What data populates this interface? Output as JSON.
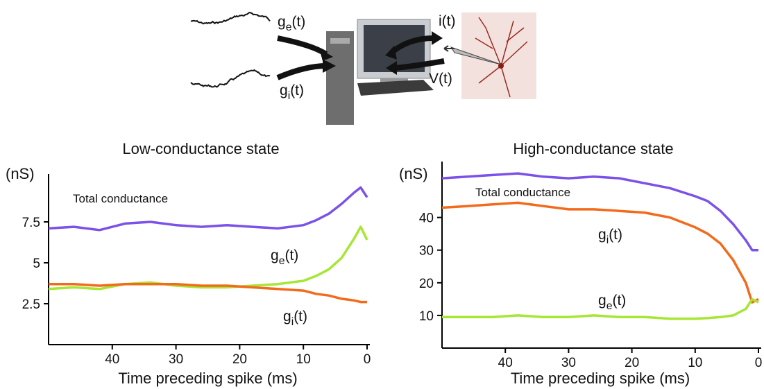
{
  "diagram": {
    "labels": [
      {
        "text": "g",
        "sub": "e",
        "suffix": "(t)"
      },
      {
        "text": "g",
        "sub": "i",
        "suffix": "(t)"
      },
      {
        "text": "i(t)"
      },
      {
        "text": "V(t)"
      }
    ]
  },
  "chart_data": [
    {
      "type": "line",
      "title": "Low-conductance state",
      "y_label": "(nS)",
      "x_label": "Time preceding spike (ms)",
      "x": [
        50,
        46,
        42,
        38,
        34,
        30,
        26,
        22,
        18,
        14,
        10,
        8,
        6,
        4,
        2,
        1,
        0
      ],
      "xlim": [
        50,
        0
      ],
      "xticks": [
        40,
        30,
        20,
        10,
        0
      ],
      "ylim": [
        0,
        10
      ],
      "yticks": [
        2.5,
        5,
        7.5
      ],
      "series": [
        {
          "name": "Total conductance",
          "color": "#7b52e8",
          "values": [
            7.1,
            7.2,
            7.0,
            7.4,
            7.5,
            7.3,
            7.2,
            7.3,
            7.2,
            7.1,
            7.3,
            7.6,
            8.0,
            8.6,
            9.3,
            9.6,
            9.0
          ]
        },
        {
          "name": {
            "text": "g",
            "sub": "e",
            "suffix": "(t)"
          },
          "color": "#a6e634",
          "values": [
            3.4,
            3.5,
            3.4,
            3.7,
            3.8,
            3.6,
            3.5,
            3.5,
            3.6,
            3.7,
            3.9,
            4.2,
            4.6,
            5.3,
            6.5,
            7.2,
            6.4
          ]
        },
        {
          "name": {
            "text": "g",
            "sub": "i",
            "suffix": "(t)"
          },
          "color": "#f26a1b",
          "values": [
            3.7,
            3.7,
            3.6,
            3.7,
            3.7,
            3.7,
            3.6,
            3.6,
            3.5,
            3.4,
            3.3,
            3.1,
            3.0,
            2.8,
            2.7,
            2.6,
            2.6
          ]
        }
      ]
    },
    {
      "type": "line",
      "title": "High-conductance state",
      "y_label": "(nS)",
      "x_label": "Time preceding spike (ms)",
      "x": [
        50,
        46,
        42,
        38,
        34,
        30,
        26,
        22,
        18,
        14,
        10,
        8,
        6,
        4,
        2,
        1,
        0
      ],
      "xlim": [
        50,
        0
      ],
      "xticks": [
        40,
        30,
        20,
        10,
        0
      ],
      "ylim": [
        0,
        55
      ],
      "yticks": [
        10,
        20,
        30,
        40
      ],
      "series": [
        {
          "name": "Total conductance",
          "color": "#7b52e8",
          "values": [
            52,
            52.5,
            53,
            53.5,
            52.5,
            52,
            52.5,
            52,
            50.5,
            49,
            46.5,
            45,
            42,
            38,
            33,
            30,
            30
          ]
        },
        {
          "name": {
            "text": "g",
            "sub": "i",
            "suffix": "(t)"
          },
          "color": "#f26a1b",
          "values": [
            43,
            43.5,
            44,
            44.5,
            43.5,
            42.5,
            42.5,
            42,
            41.5,
            40,
            37,
            35,
            32,
            27,
            20,
            14,
            15
          ]
        },
        {
          "name": {
            "text": "g",
            "sub": "e",
            "suffix": "(t)"
          },
          "color": "#a6e634",
          "values": [
            9.5,
            9.5,
            9.5,
            10,
            9.5,
            9.5,
            10,
            9.5,
            9.5,
            9,
            9,
            9.2,
            9.5,
            10,
            12,
            15,
            14
          ]
        }
      ]
    }
  ]
}
